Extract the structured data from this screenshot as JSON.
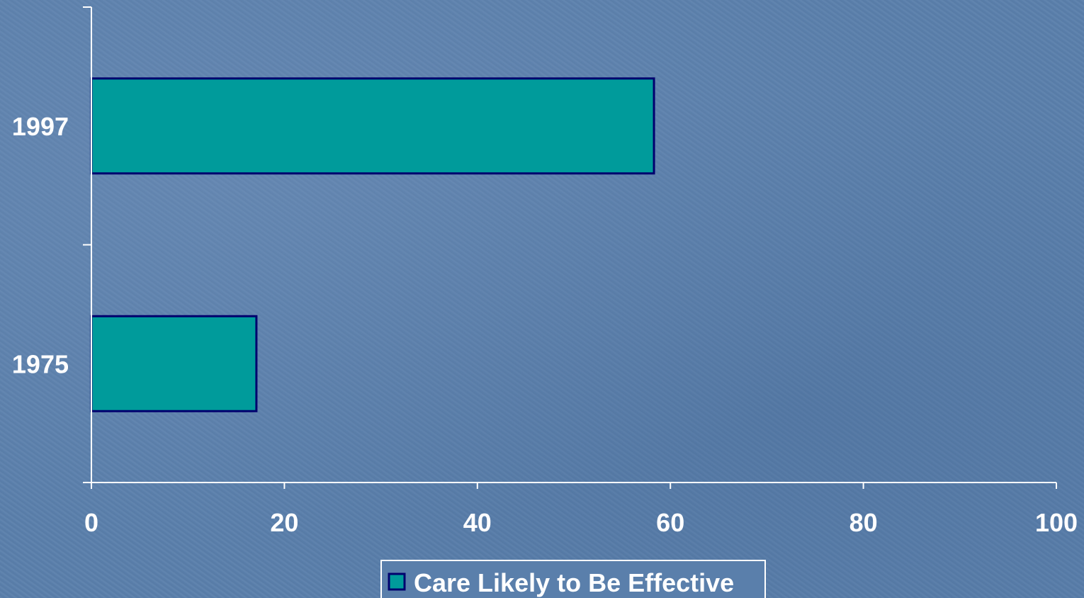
{
  "chart_data": {
    "type": "bar",
    "orientation": "horizontal",
    "categories": [
      "1997",
      "1975"
    ],
    "series": [
      {
        "name": "Care Likely to Be Effective",
        "values": [
          58.3,
          17.1
        ],
        "color": "#009b9b",
        "border_color": "#00006e"
      }
    ],
    "x_ticks": [
      "0",
      "20",
      "40",
      "60",
      "80",
      "100"
    ],
    "xlim": [
      0,
      100
    ],
    "grid": false,
    "legend_position": "bottom-center"
  },
  "colors": {
    "axis": "#ffffff",
    "background": "#5a7fab",
    "legend_box": "#5a7fab"
  }
}
